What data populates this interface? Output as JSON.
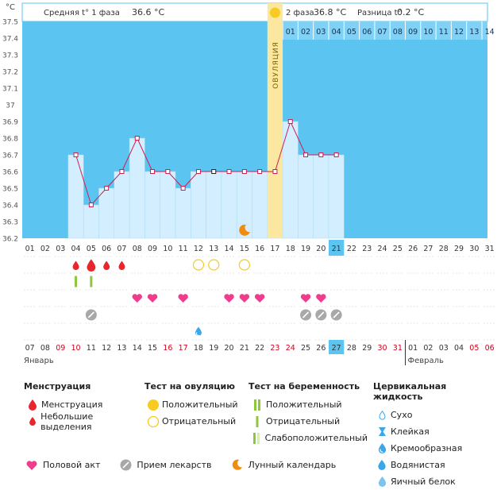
{
  "header": {
    "phase1_label": "Средняя t° 1 фаза",
    "phase1_value": "36.6 °C",
    "phase2_label": "2 фаза",
    "phase2_value": "36.8 °C",
    "diff_label": "Разница t°",
    "diff_value": "0.2 °C",
    "unit": "°C"
  },
  "ovulation_label": "ОВУЛЯЦИЯ",
  "chart_data": {
    "type": "line",
    "y_ticks": [
      "37.5",
      "37.4",
      "37.3",
      "37.2",
      "37.1",
      "37",
      "36.9",
      "36.8",
      "36.7",
      "36.6",
      "36.5",
      "36.4",
      "36.3",
      "36.2"
    ],
    "ylim": [
      36.2,
      37.5
    ],
    "cycle_days": [
      "01",
      "02",
      "03",
      "04",
      "05",
      "06",
      "07",
      "08",
      "09",
      "10",
      "11",
      "12",
      "13",
      "14",
      "15",
      "16",
      "17",
      "18",
      "19",
      "20",
      "21",
      "22",
      "23",
      "24",
      "25",
      "26",
      "27",
      "28",
      "29",
      "30",
      "31"
    ],
    "phase2_days": [
      "01",
      "02",
      "03",
      "04",
      "05",
      "06",
      "07",
      "08",
      "09",
      "10",
      "11",
      "12",
      "13",
      "14"
    ],
    "today_cycle_day": "21",
    "ovulation_day": 17,
    "phase2_start_day": 18,
    "temperature_days": [
      4,
      5,
      6,
      7,
      8,
      9,
      10,
      11,
      12,
      13,
      14,
      15,
      16,
      17,
      18,
      19,
      20,
      21
    ],
    "temperature_values": [
      36.7,
      36.4,
      36.5,
      36.6,
      36.8,
      36.6,
      36.6,
      36.5,
      36.6,
      36.6,
      36.6,
      36.6,
      36.6,
      36.6,
      36.9,
      36.7,
      36.7,
      36.7
    ],
    "highlighted_point_day": 13
  },
  "calendar": {
    "dates": [
      {
        "d": "07",
        "red": false
      },
      {
        "d": "08",
        "red": false
      },
      {
        "d": "09",
        "red": true
      },
      {
        "d": "10",
        "red": true
      },
      {
        "d": "11",
        "red": false
      },
      {
        "d": "12",
        "red": false
      },
      {
        "d": "13",
        "red": false
      },
      {
        "d": "14",
        "red": false
      },
      {
        "d": "15",
        "red": false
      },
      {
        "d": "16",
        "red": true
      },
      {
        "d": "17",
        "red": true
      },
      {
        "d": "18",
        "red": false
      },
      {
        "d": "19",
        "red": false
      },
      {
        "d": "20",
        "red": false
      },
      {
        "d": "21",
        "red": false
      },
      {
        "d": "22",
        "red": false
      },
      {
        "d": "23",
        "red": true
      },
      {
        "d": "24",
        "red": true
      },
      {
        "d": "25",
        "red": false
      },
      {
        "d": "26",
        "red": false
      },
      {
        "d": "27",
        "red": false
      },
      {
        "d": "28",
        "red": false
      },
      {
        "d": "29",
        "red": false
      },
      {
        "d": "30",
        "red": true
      },
      {
        "d": "31",
        "red": true
      },
      {
        "d": "01",
        "red": false
      },
      {
        "d": "02",
        "red": false
      },
      {
        "d": "03",
        "red": false
      },
      {
        "d": "04",
        "red": false
      },
      {
        "d": "05",
        "red": true
      },
      {
        "d": "06",
        "red": true
      }
    ],
    "month1": "Январь",
    "month2": "Февраль",
    "today_date": "27"
  },
  "events": {
    "menstruation": [
      {
        "day": 4,
        "size": "small"
      },
      {
        "day": 5,
        "size": "large"
      },
      {
        "day": 6,
        "size": "small"
      },
      {
        "day": 7,
        "size": "small"
      }
    ],
    "ovulation_test_negative": [
      12,
      13,
      15
    ],
    "pregnancy_test_positive": [
      4,
      5
    ],
    "intercourse": [
      8,
      9,
      11,
      14,
      15,
      16,
      19,
      20
    ],
    "medication": [
      5,
      19,
      20,
      21
    ],
    "cervical_creamy": [
      12
    ],
    "lunar": [
      15
    ]
  },
  "legend": {
    "menstruation_title": "Менструация",
    "menstruation_items": [
      "Менструация",
      "Небольшие выделения"
    ],
    "ovulation_title": "Тест на овуляцию",
    "ovulation_items": [
      "Положительный",
      "Отрицательный"
    ],
    "pregnancy_title": "Тест на беременность",
    "pregnancy_items": [
      "Положительный",
      "Отрицательный",
      "Слабоположительный"
    ],
    "cervical_title": "Цервикальная жидкость",
    "cervical_items": [
      "Сухо",
      "Клейкая",
      "Кремообразная",
      "Водянистая",
      "Яичный белок"
    ],
    "bottom_items": [
      "Половой акт",
      "Прием лекарств",
      "Лунный календарь"
    ]
  },
  "colors": {
    "sky": "#5cc4f0",
    "bar": "#d3efff",
    "ovulation_band": "#fbe7a0",
    "line": "#cc1e52",
    "menstruation": "#e8262e",
    "heart": "#f03c8c",
    "pregnancy_green": "#8cc83c",
    "ovulation_test": "#f7cb1f",
    "medication": "#a8a8a8",
    "lunar": "#f08c10",
    "creamy": "#3aa8e8"
  }
}
